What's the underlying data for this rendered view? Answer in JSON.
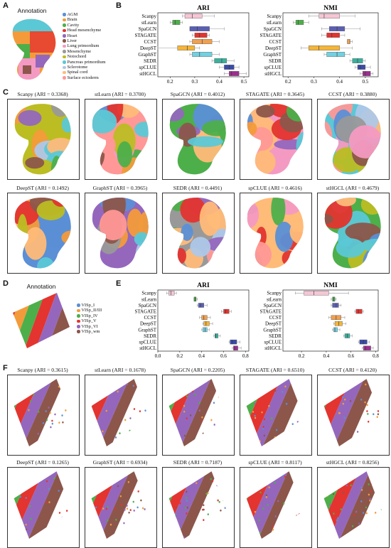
{
  "panels": {
    "A": "A",
    "B": "B",
    "C": "C",
    "D": "D",
    "E": "E",
    "F": "F"
  },
  "panelA": {
    "title": "Annotation",
    "legend": [
      {
        "label": "AGM",
        "color": "#5b8fd6"
      },
      {
        "label": "Brain",
        "color": "#f39b3a"
      },
      {
        "label": "Cavity",
        "color": "#4daf4a"
      },
      {
        "label": "Head mesenchyme",
        "color": "#e3342f"
      },
      {
        "label": "Heart",
        "color": "#9467bd"
      },
      {
        "label": "Liver",
        "color": "#8c564b"
      },
      {
        "label": "Lung primordium",
        "color": "#f49ac2"
      },
      {
        "label": "Mesenchyme",
        "color": "#999999"
      },
      {
        "label": "Notochord",
        "color": "#bcbd22"
      },
      {
        "label": "Pancreas primordium",
        "color": "#5bc8d6"
      },
      {
        "label": "Sclerotome",
        "color": "#aec7e8"
      },
      {
        "label": "Spinal cord",
        "color": "#ffbb78"
      },
      {
        "label": "Surface ectoderm",
        "color": "#ff9896"
      }
    ]
  },
  "panelD": {
    "title": "Annotation",
    "legend": [
      {
        "label": "VISp_I",
        "color": "#5b8fd6"
      },
      {
        "label": "VISp_II/III",
        "color": "#f39b3a"
      },
      {
        "label": "VISp_IV",
        "color": "#4daf4a"
      },
      {
        "label": "VISp_V",
        "color": "#e3342f"
      },
      {
        "label": "VISp_VI",
        "color": "#9467bd"
      },
      {
        "label": "VISp_wm",
        "color": "#8c564b"
      }
    ]
  },
  "chart_data": [
    {
      "id": "B-ARI",
      "type": "boxplot",
      "title": "ARI",
      "categories": [
        "Scanpy",
        "stLearn",
        "SpaGCN",
        "STAGATE",
        "CCST",
        "DeepST",
        "GraphST",
        "SEDR",
        "spCLUE",
        "stHGCL"
      ],
      "colors": [
        "#f6c6d4",
        "#4daf4a",
        "#5b5fb4",
        "#e3342f",
        "#f0a050",
        "#f3b53a",
        "#73d0e0",
        "#3ab09e",
        "#3a4aa8",
        "#9c2f8f"
      ],
      "boxes": [
        [
          0.25,
          0.26,
          0.29,
          0.33,
          0.38
        ],
        [
          0.2,
          0.21,
          0.22,
          0.24,
          0.25
        ],
        [
          0.28,
          0.28,
          0.31,
          0.36,
          0.42
        ],
        [
          0.29,
          0.3,
          0.32,
          0.35,
          0.36
        ],
        [
          0.28,
          0.29,
          0.33,
          0.37,
          0.4
        ],
        [
          0.15,
          0.23,
          0.27,
          0.3,
          0.32
        ],
        [
          0.28,
          0.29,
          0.32,
          0.37,
          0.4
        ],
        [
          0.37,
          0.38,
          0.41,
          0.43,
          0.46
        ],
        [
          0.4,
          0.42,
          0.44,
          0.46,
          0.48
        ],
        [
          0.42,
          0.44,
          0.45,
          0.48,
          0.51
        ]
      ],
      "xlim": [
        0.15,
        0.52
      ],
      "xticks": [
        "0.2",
        "0.3",
        "0.4",
        "0.5"
      ],
      "xtick_values": [
        0.2,
        0.3,
        0.4,
        0.5
      ]
    },
    {
      "id": "B-NMI",
      "type": "boxplot",
      "title": "NMI",
      "categories": [
        "Scanpy",
        "stLearn",
        "SpaGCN",
        "STAGATE",
        "CCST",
        "DeepST",
        "GraphST",
        "SEDR",
        "spCLUE",
        "stHGCL"
      ],
      "colors": [
        "#f6c6d4",
        "#4daf4a",
        "#5b5fb4",
        "#e3342f",
        "#f0a050",
        "#f3b53a",
        "#73d0e0",
        "#3ab09e",
        "#3a4aa8",
        "#9c2f8f"
      ],
      "boxes": [
        [
          0.28,
          0.32,
          0.34,
          0.4,
          0.46
        ],
        [
          0.22,
          0.23,
          0.24,
          0.26,
          0.28
        ],
        [
          0.33,
          0.36,
          0.39,
          0.42,
          0.48
        ],
        [
          0.33,
          0.35,
          0.37,
          0.4,
          0.42
        ],
        [
          0.43,
          0.43,
          0.44,
          0.44,
          0.45
        ],
        [
          0.25,
          0.28,
          0.32,
          0.4,
          0.45
        ],
        [
          0.34,
          0.35,
          0.39,
          0.42,
          0.44
        ],
        [
          0.44,
          0.45,
          0.47,
          0.49,
          0.5
        ],
        [
          0.46,
          0.47,
          0.48,
          0.5,
          0.52
        ],
        [
          0.48,
          0.49,
          0.5,
          0.52,
          0.53
        ]
      ],
      "xlim": [
        0.18,
        0.55
      ],
      "xticks": [
        "0.2",
        "0.3",
        "0.4",
        "0.5"
      ],
      "xtick_values": [
        0.2,
        0.3,
        0.4,
        0.5
      ]
    },
    {
      "id": "E-ARI",
      "type": "boxplot",
      "title": "ARI",
      "categories": [
        "Scanpy",
        "stLearn",
        "SpaGCN",
        "STAGATE",
        "CCST",
        "DeepST",
        "GraphST",
        "SEDR",
        "spCLUE",
        "stHGCL"
      ],
      "colors": [
        "#f6c6d4",
        "#4daf4a",
        "#5b5fb4",
        "#e3342f",
        "#f0a050",
        "#f3b53a",
        "#73d0e0",
        "#3ab09e",
        "#3a4aa8",
        "#9c2f8f"
      ],
      "boxes": [
        [
          0.08,
          0.1,
          0.12,
          0.15,
          0.17
        ],
        [
          0.33,
          0.33,
          0.34,
          0.35,
          0.36
        ],
        [
          0.36,
          0.37,
          0.39,
          0.42,
          0.45
        ],
        [
          0.58,
          0.6,
          0.62,
          0.65,
          0.67
        ],
        [
          0.38,
          0.4,
          0.42,
          0.45,
          0.48
        ],
        [
          0.41,
          0.42,
          0.44,
          0.47,
          0.5
        ],
        [
          0.4,
          0.41,
          0.43,
          0.45,
          0.47
        ],
        [
          0.51,
          0.52,
          0.53,
          0.55,
          0.57
        ],
        [
          0.65,
          0.66,
          0.68,
          0.72,
          0.75
        ],
        [
          0.68,
          0.69,
          0.7,
          0.73,
          0.76
        ]
      ],
      "xlim": [
        0.0,
        0.83
      ],
      "xticks": [
        "0.0",
        "0.2",
        "0.4",
        "0.6",
        "0.8"
      ],
      "xtick_values": [
        0.0,
        0.2,
        0.4,
        0.6,
        0.8
      ]
    },
    {
      "id": "E-NMI",
      "type": "boxplot",
      "title": "NMI",
      "categories": [
        "Scanpy",
        "stLearn",
        "SpaGCN",
        "STAGATE",
        "CCST",
        "DeepST",
        "GraphST",
        "SEDR",
        "spCLUE",
        "stHGCL"
      ],
      "colors": [
        "#f6c6d4",
        "#4daf4a",
        "#5b5fb4",
        "#e3342f",
        "#f0a050",
        "#f3b53a",
        "#73d0e0",
        "#3ab09e",
        "#3a4aa8",
        "#9c2f8f"
      ],
      "boxes": [
        [
          0.15,
          0.22,
          0.3,
          0.42,
          0.58
        ],
        [
          0.44,
          0.45,
          0.46,
          0.47,
          0.48
        ],
        [
          0.44,
          0.45,
          0.48,
          0.5,
          0.52
        ],
        [
          0.63,
          0.64,
          0.66,
          0.69,
          0.7
        ],
        [
          0.42,
          0.44,
          0.48,
          0.52,
          0.55
        ],
        [
          0.46,
          0.47,
          0.5,
          0.53,
          0.56
        ],
        [
          0.45,
          0.46,
          0.47,
          0.49,
          0.51
        ],
        [
          0.54,
          0.55,
          0.57,
          0.59,
          0.61
        ],
        [
          0.66,
          0.67,
          0.7,
          0.73,
          0.75
        ],
        [
          0.69,
          0.7,
          0.72,
          0.76,
          0.78
        ]
      ],
      "xlim": [
        0.05,
        0.82
      ],
      "xticks": [
        "0.2",
        "0.4",
        "0.6",
        "0.8"
      ],
      "xtick_values": [
        0.2,
        0.4,
        0.6,
        0.8
      ]
    }
  ],
  "panelC": {
    "tiles": [
      {
        "title": "Scanpy (ARI = 0.3368)"
      },
      {
        "title": "stLearn (ARI = 0.3700)"
      },
      {
        "title": "SpaGCN (ARI = 0.4012)"
      },
      {
        "title": "STAGATE (ARI = 0.3645)"
      },
      {
        "title": "CCST (ARI = 0.3880)"
      },
      {
        "title": "DeepST (ARI = 0.1492)"
      },
      {
        "title": "GraphST (ARI = 0.3965)"
      },
      {
        "title": "SEDR (ARI = 0.4491)"
      },
      {
        "title": "spCLUE (ARI = 0.4616)"
      },
      {
        "title": "stHGCL (ARI = 0.4679)"
      }
    ]
  },
  "panelF": {
    "tiles": [
      {
        "title": "Scanpy (ARI = 0.3615)"
      },
      {
        "title": "stLearn (ARI = 0.1678)"
      },
      {
        "title": "SpaGCN (ARI = 0.2205)"
      },
      {
        "title": "STAGATE (ARI = 0.6510)"
      },
      {
        "title": "CCST (ARI = 0.4120)"
      },
      {
        "title": "DeepST (ARI = 0.1265)"
      },
      {
        "title": "GraphST (ARI = 0.6934)"
      },
      {
        "title": "SEDR (ARI = 0.7187)"
      },
      {
        "title": "spCLUE (ARI = 0.8117)"
      },
      {
        "title": "stHGCL (ARI = 0.8256)"
      }
    ]
  }
}
